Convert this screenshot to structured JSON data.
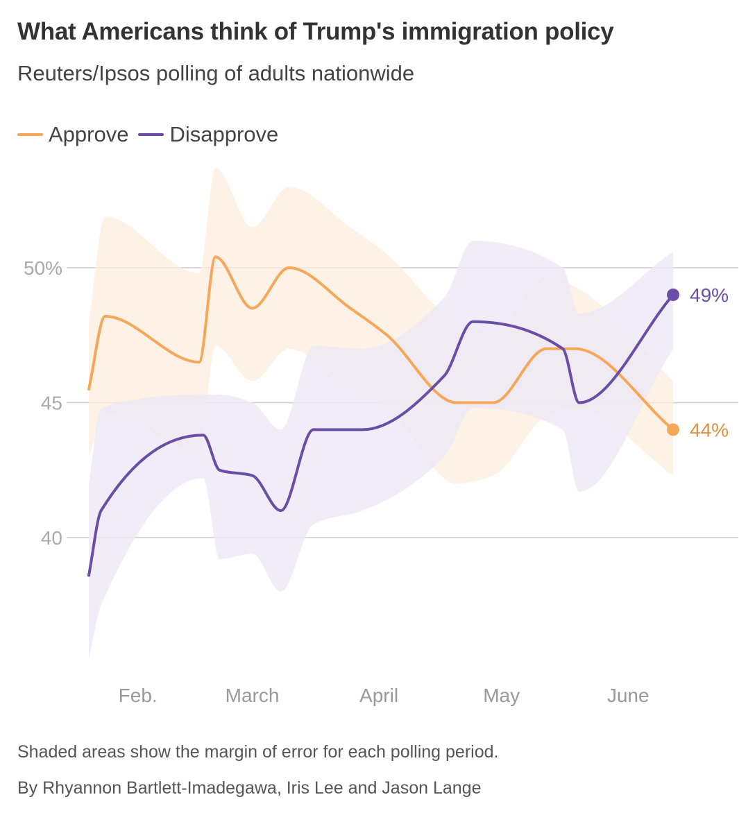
{
  "header": {
    "title": "What Americans think of Trump's immigration policy",
    "subtitle": "Reuters/Ipsos polling of adults nationwide"
  },
  "legend": {
    "items": [
      {
        "label": "Approve",
        "color": "#f5a85a"
      },
      {
        "label": "Disapprove",
        "color": "#6a4ea6"
      }
    ]
  },
  "footer": {
    "note": "Shaded areas show the margin of error for each polling period.",
    "byline": "By Rhyannon Bartlett-Imadegawa, Iris Lee and Jason Lange"
  },
  "colors": {
    "approve": "#f5a85a",
    "approve_band": "#fdeedd",
    "approve_label": "#e0913f",
    "disapprove": "#6a4ea6",
    "disapprove_band": "#ece8f6",
    "grid": "#cccccc",
    "tick": "#aaaaaa"
  },
  "chart_data": {
    "type": "line",
    "title": "What Americans think of Trump's immigration policy",
    "subtitle": "Reuters/Ipsos polling of adults nationwide",
    "x_type": "date",
    "x_ticks": [
      {
        "label": "Feb.",
        "date": "2025-02-07"
      },
      {
        "label": "March",
        "date": "2025-03-07"
      },
      {
        "label": "April",
        "date": "2025-04-07"
      },
      {
        "label": "May",
        "date": "2025-05-07"
      },
      {
        "label": "June",
        "date": "2025-06-07"
      }
    ],
    "y_ticks": [
      {
        "value": 40,
        "label": "40"
      },
      {
        "value": 45,
        "label": "45"
      },
      {
        "value": 50,
        "label": "50%"
      }
    ],
    "ylim": [
      35,
      54
    ],
    "grid": true,
    "legend_position": "top-left",
    "series": [
      {
        "name": "Approve",
        "color": "#f5a85a",
        "end_label": "44%",
        "points": [
          {
            "date": "2025-01-26",
            "value": 45.5
          },
          {
            "date": "2025-01-30",
            "value": 48.2
          },
          {
            "date": "2025-02-22",
            "value": 46.5
          },
          {
            "date": "2025-02-26",
            "value": 50.4
          },
          {
            "date": "2025-03-07",
            "value": 48.5
          },
          {
            "date": "2025-03-16",
            "value": 50.0
          },
          {
            "date": "2025-03-31",
            "value": 48.5
          },
          {
            "date": "2025-04-09",
            "value": 47.5
          },
          {
            "date": "2025-04-26",
            "value": 45.0
          },
          {
            "date": "2025-05-05",
            "value": 45.0
          },
          {
            "date": "2025-05-18",
            "value": 47.0
          },
          {
            "date": "2025-05-25",
            "value": 47.0
          },
          {
            "date": "2025-06-18",
            "value": 44.0
          }
        ],
        "margin_low": [
          43.0,
          44.6,
          43.2,
          47.1,
          45.8,
          47.0,
          45.5,
          44.8,
          42.0,
          42.3,
          44.5,
          44.8,
          42.3
        ],
        "margin_high": [
          48.0,
          51.9,
          49.8,
          53.7,
          51.5,
          53.0,
          51.5,
          50.5,
          48.0,
          47.6,
          49.7,
          49.3,
          45.8
        ]
      },
      {
        "name": "Disapprove",
        "color": "#6a4ea6",
        "end_label": "49%",
        "points": [
          {
            "date": "2025-01-26",
            "value": 38.6
          },
          {
            "date": "2025-01-29",
            "value": 41.0
          },
          {
            "date": "2025-02-23",
            "value": 43.8
          },
          {
            "date": "2025-02-27",
            "value": 42.5
          },
          {
            "date": "2025-03-07",
            "value": 42.3
          },
          {
            "date": "2025-03-14",
            "value": 41.0
          },
          {
            "date": "2025-03-22",
            "value": 44.0
          },
          {
            "date": "2025-04-03",
            "value": 44.0
          },
          {
            "date": "2025-04-23",
            "value": 46.0
          },
          {
            "date": "2025-04-30",
            "value": 48.0
          },
          {
            "date": "2025-05-22",
            "value": 47.0
          },
          {
            "date": "2025-05-26",
            "value": 45.0
          },
          {
            "date": "2025-06-18",
            "value": 49.0
          }
        ],
        "margin_low": [
          35.5,
          37.5,
          42.2,
          39.2,
          39.4,
          38.0,
          40.5,
          41.0,
          43.0,
          44.8,
          44.0,
          41.7,
          47.0
        ],
        "margin_high": [
          42.0,
          44.8,
          45.3,
          45.3,
          45.0,
          44.0,
          47.1,
          47.0,
          48.9,
          51.0,
          50.0,
          48.3,
          50.6
        ]
      }
    ]
  }
}
